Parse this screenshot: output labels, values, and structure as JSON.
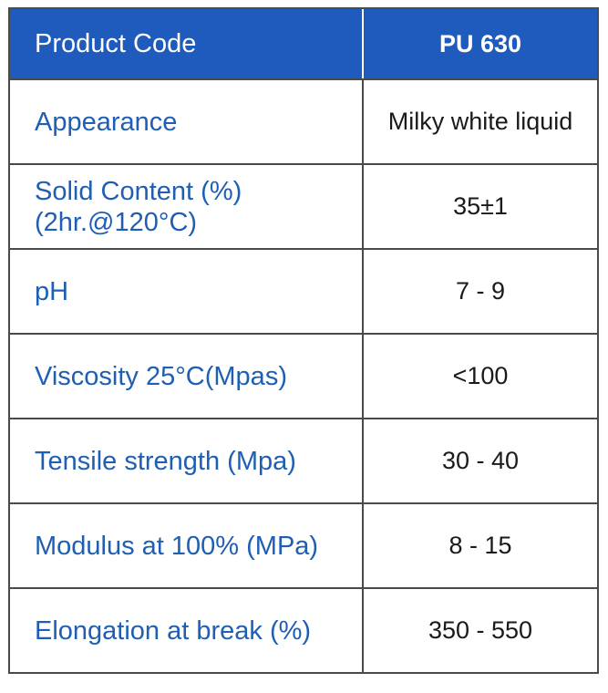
{
  "header": {
    "label": "Product Code",
    "value": "PU 630"
  },
  "rows": [
    {
      "label": "Appearance",
      "value": "Milky white liquid"
    },
    {
      "label_line1": "Solid Content (%)",
      "label_line2": "(2hr.@120°C)",
      "value": "35±1"
    },
    {
      "label": "pH",
      "value": "7 - 9"
    },
    {
      "label": "Viscosity 25°C(Mpas)",
      "value": "<100"
    },
    {
      "label": "Tensile strength (Mpa)",
      "value": "30 - 40"
    },
    {
      "label": "Modulus at 100% (MPa)",
      "value": "8 - 15"
    },
    {
      "label": "Elongation at break (%)",
      "value": "350 - 550"
    }
  ],
  "colors": {
    "header_background": "#1f5bbd",
    "label_text": "#1e5fb3",
    "value_text": "#1a1a1a",
    "border": "#4a4a4a"
  }
}
